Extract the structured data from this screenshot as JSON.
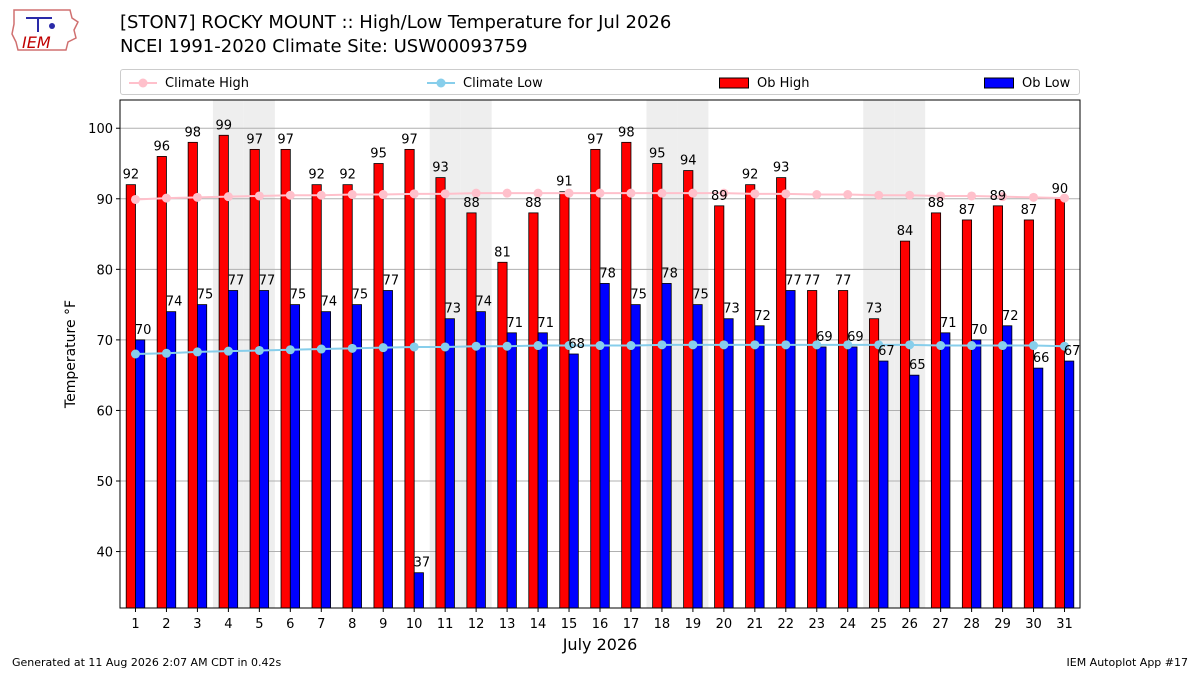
{
  "header": {
    "title_line1": "[STON7] ROCKY MOUNT :: High/Low Temperature for Jul 2026",
    "title_line2": "NCEI 1991-2020 Climate Site: USW00093759"
  },
  "logo": {
    "text": "IEM"
  },
  "footer": {
    "left": "Generated at 11 Aug 2026 2:07 AM CDT in 0.42s",
    "right": "IEM Autoplot App #17"
  },
  "colors": {
    "ob_high": "#ff0000",
    "ob_low": "#0000ff",
    "climate_high": "#ffc0cb",
    "climate_low": "#87ceeb",
    "weekend_band": "#eeeeee"
  },
  "chart_data": {
    "type": "bar",
    "xlabel": "July 2026",
    "ylabel": "Temperature °F",
    "ylim": [
      32,
      104
    ],
    "yticks": [
      40,
      50,
      60,
      70,
      80,
      90,
      100
    ],
    "grid": true,
    "legend_position": "top",
    "categories": [
      "1",
      "2",
      "3",
      "4",
      "5",
      "6",
      "7",
      "8",
      "9",
      "10",
      "11",
      "12",
      "13",
      "14",
      "15",
      "16",
      "17",
      "18",
      "19",
      "20",
      "21",
      "22",
      "23",
      "24",
      "25",
      "26",
      "27",
      "28",
      "29",
      "30",
      "31"
    ],
    "shaded_days": [
      4,
      5,
      11,
      12,
      18,
      19,
      25,
      26
    ],
    "series": [
      {
        "name": "Ob High",
        "kind": "bar",
        "values": [
          92,
          96,
          98,
          99,
          97,
          97,
          92,
          92,
          95,
          97,
          93,
          88,
          81,
          88,
          91,
          97,
          98,
          95,
          94,
          89,
          92,
          93,
          77,
          77,
          73,
          84,
          88,
          87,
          89,
          87,
          90
        ]
      },
      {
        "name": "Ob Low",
        "kind": "bar",
        "values": [
          70,
          74,
          75,
          77,
          77,
          75,
          74,
          75,
          77,
          37,
          73,
          74,
          71,
          71,
          68,
          78,
          75,
          78,
          75,
          73,
          72,
          77,
          69,
          69,
          67,
          65,
          71,
          70,
          72,
          66,
          67
        ]
      },
      {
        "name": "Climate High",
        "kind": "line",
        "values": [
          89.9,
          90.1,
          90.2,
          90.3,
          90.4,
          90.5,
          90.5,
          90.6,
          90.6,
          90.7,
          90.7,
          90.8,
          90.8,
          90.8,
          90.8,
          90.8,
          90.8,
          90.8,
          90.8,
          90.8,
          90.7,
          90.7,
          90.6,
          90.6,
          90.5,
          90.5,
          90.4,
          90.4,
          90.3,
          90.2,
          90.1
        ]
      },
      {
        "name": "Climate Low",
        "kind": "line",
        "values": [
          68.0,
          68.1,
          68.3,
          68.4,
          68.5,
          68.6,
          68.7,
          68.8,
          68.9,
          69.0,
          69.0,
          69.1,
          69.1,
          69.2,
          69.2,
          69.2,
          69.2,
          69.3,
          69.3,
          69.3,
          69.3,
          69.3,
          69.3,
          69.3,
          69.3,
          69.3,
          69.2,
          69.2,
          69.2,
          69.2,
          69.1
        ]
      }
    ]
  }
}
